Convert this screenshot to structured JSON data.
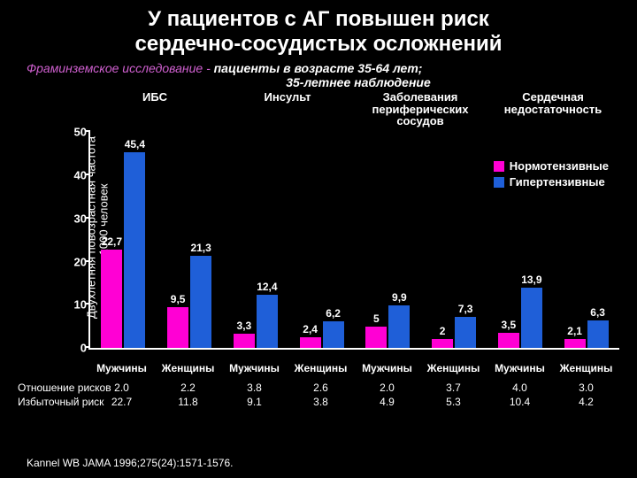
{
  "title_line1": "У пациентов с АГ повышен риск",
  "title_line2": "сердечно-сосудистых осложнений",
  "title_fontsize": 24,
  "title_color": "#ffffff",
  "subtitle_a": "Фраминземское исследование - ",
  "subtitle_b": "пациенты в возрасте 35-64 лет;",
  "subtitle_c": "35-летнее наблюдение",
  "subtitle_fontsize": 14,
  "subtitle_color_a": "#d060d0",
  "subtitle_color_b": "#ffffff",
  "yaxis_label_l1": "Двухлетняя повозрастная частота",
  "yaxis_label_l2": "на 1000 человек",
  "yaxis_fontsize": 13,
  "chart": {
    "type": "bar",
    "ylim": [
      0,
      50
    ],
    "yticks": [
      0,
      10,
      20,
      30,
      40,
      50
    ],
    "ytick_fontsize": 13,
    "bar_label_fontsize": 12,
    "group_header_fontsize": 13,
    "axis_color": "#ffffff",
    "background": "#000000",
    "groups": [
      {
        "label": "ИБС"
      },
      {
        "label": "Инсульт"
      },
      {
        "label": "Заболевания периферических сосудов"
      },
      {
        "label": "Сердечная недостаточность"
      }
    ],
    "x_categories": [
      "Мужчины",
      "Женщины",
      "Мужчины",
      "Женщины",
      "Мужчины",
      "Женщины",
      "Мужчины",
      "Женщины"
    ],
    "xlabel_fontsize": 12,
    "series": [
      {
        "name": "Нормотензивные",
        "color": "#ff00d4"
      },
      {
        "name": "Гипертензивные",
        "color": "#1f5fd8"
      }
    ],
    "values_normo": [
      22.7,
      9.5,
      3.3,
      2.4,
      5.0,
      2.0,
      3.5,
      2.1
    ],
    "values_hyper": [
      45.4,
      21.3,
      12.4,
      6.2,
      9.9,
      7.3,
      13.9,
      6.3
    ],
    "labels_normo": [
      "22,7",
      "9,5",
      "3,3",
      "2,4",
      "5",
      "2",
      "3,5",
      "2,1"
    ],
    "labels_hyper": [
      "45,4",
      "21,3",
      "12,4",
      "6,2",
      "9,9",
      "7,3",
      "13,9",
      "6,3"
    ],
    "extra_label_50": "50"
  },
  "legend": {
    "items": [
      {
        "label": "Нормотензивные",
        "color": "#ff00d4"
      },
      {
        "label": "Гипертензивные",
        "color": "#1f5fd8"
      }
    ],
    "fontsize": 13
  },
  "risk_table": {
    "row1_label": "Отношение рисков",
    "row1": [
      "2.0",
      "2.2",
      "3.8",
      "2.6",
      "2.0",
      "3.7",
      "4.0",
      "3.0"
    ],
    "row2_label": "Избыточный риск",
    "row2": [
      "22.7",
      "11.8",
      "9.1",
      "3.8",
      "4.9",
      "5.3",
      "10.4",
      "4.2"
    ],
    "fontsize": 12
  },
  "citation": "Kannel WB JAMA 1996;275(24):1571-1576.",
  "citation_fontsize": 12
}
